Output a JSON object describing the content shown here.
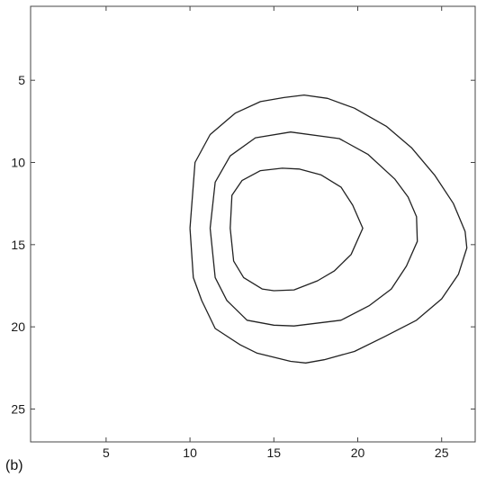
{
  "panel_label": "(b)",
  "chart_data": {
    "type": "contour",
    "title": "",
    "xlabel": "",
    "ylabel": "",
    "xlim": [
      0.5,
      27
    ],
    "ylim": [
      0.5,
      27
    ],
    "y_reversed": true,
    "grid": false,
    "x_ticks": [
      5,
      10,
      15,
      20,
      25
    ],
    "y_ticks": [
      5,
      10,
      15,
      20,
      25
    ],
    "line_color": "#222222",
    "contours": [
      {
        "points": [
          [
            10,
            14
          ],
          [
            10.3,
            10
          ],
          [
            11.2,
            8.3
          ],
          [
            12.7,
            7
          ],
          [
            14.2,
            6.3
          ],
          [
            15.6,
            6.05
          ],
          [
            16.8,
            5.9
          ],
          [
            18.2,
            6.1
          ],
          [
            19.8,
            6.7
          ],
          [
            21.7,
            7.8
          ],
          [
            23.2,
            9.1
          ],
          [
            24.6,
            10.8
          ],
          [
            25.7,
            12.5
          ],
          [
            26.4,
            14.2
          ],
          [
            26.5,
            15.2
          ],
          [
            26,
            16.8
          ],
          [
            25,
            18.3
          ],
          [
            23.5,
            19.6
          ],
          [
            21.6,
            20.6
          ],
          [
            19.8,
            21.5
          ],
          [
            18,
            22
          ],
          [
            16.9,
            22.2
          ],
          [
            16,
            22.1
          ],
          [
            14,
            21.6
          ],
          [
            13,
            21.1
          ],
          [
            11.5,
            20.1
          ],
          [
            10.7,
            18.4
          ],
          [
            10.2,
            17
          ],
          [
            10,
            14
          ]
        ]
      },
      {
        "points": [
          [
            11.2,
            14
          ],
          [
            11.5,
            11.2
          ],
          [
            12.4,
            9.6
          ],
          [
            13.9,
            8.5
          ],
          [
            16,
            8.15
          ],
          [
            18.9,
            8.55
          ],
          [
            20.6,
            9.5
          ],
          [
            22.2,
            11
          ],
          [
            23,
            12.1
          ],
          [
            23.5,
            13.3
          ],
          [
            23.55,
            14.8
          ],
          [
            22.9,
            16.3
          ],
          [
            22,
            17.7
          ],
          [
            20.7,
            18.7
          ],
          [
            19,
            19.6
          ],
          [
            16.2,
            19.95
          ],
          [
            15,
            19.9
          ],
          [
            13.4,
            19.6
          ],
          [
            12.2,
            18.4
          ],
          [
            11.5,
            17
          ],
          [
            11.2,
            14
          ]
        ]
      },
      {
        "points": [
          [
            12.4,
            14
          ],
          [
            12.5,
            12
          ],
          [
            13.1,
            11.1
          ],
          [
            14.2,
            10.5
          ],
          [
            15.5,
            10.35
          ],
          [
            16.5,
            10.4
          ],
          [
            17.8,
            10.75
          ],
          [
            19,
            11.5
          ],
          [
            19.7,
            12.6
          ],
          [
            20.3,
            14
          ],
          [
            19.6,
            15.6
          ],
          [
            18.6,
            16.6
          ],
          [
            17.6,
            17.2
          ],
          [
            16.2,
            17.75
          ],
          [
            15,
            17.8
          ],
          [
            14.3,
            17.7
          ],
          [
            13.2,
            17
          ],
          [
            12.6,
            16
          ],
          [
            12.4,
            14
          ]
        ]
      }
    ]
  }
}
